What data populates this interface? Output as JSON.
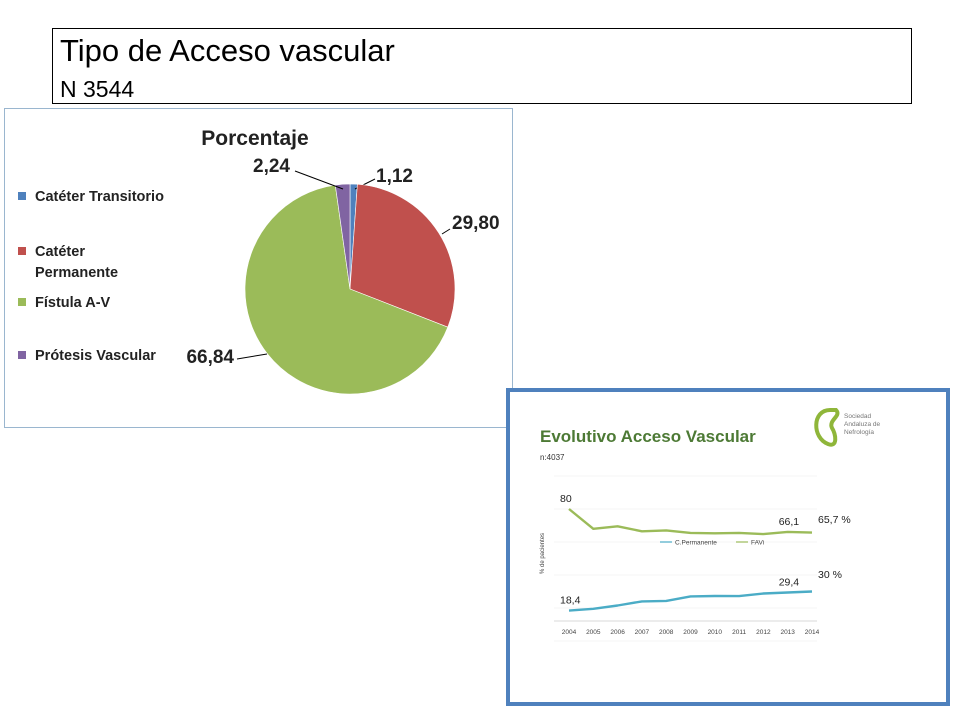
{
  "slide": {
    "title": "Tipo de Acceso vascular",
    "subtitle": "N 3544"
  },
  "pie": {
    "title": "Porcentaje",
    "legend_labels": [
      "Catéter Transitorio",
      "Catéter\nPermanente",
      "Fístula A-V",
      "Prótesis Vascular"
    ]
  },
  "evolution": {
    "title": "Evolutivo Acceso Vascular",
    "n_label": "n:4037",
    "ylabel": "% de pacientes",
    "logo_text": [
      "Sociedad",
      "Andaluza de",
      "Nefrología"
    ],
    "end_labels": [
      "65,7 %",
      "30 %"
    ]
  },
  "chart_data": [
    {
      "type": "pie",
      "title": "Porcentaje",
      "categories": [
        "Catéter Transitorio",
        "Catéter Permanente",
        "Fístula A-V",
        "Prótesis Vascular"
      ],
      "values": [
        1.12,
        29.8,
        66.84,
        2.24
      ],
      "value_labels": [
        "1,12",
        "29,80",
        "66,84",
        "2,24"
      ],
      "colors": [
        "#4f81bd",
        "#c0504d",
        "#9bbb59",
        "#8064a2"
      ],
      "legend_position": "left"
    },
    {
      "type": "line",
      "title": "Evolutivo Acceso Vascular",
      "ylabel": "% de pacientes",
      "x": [
        "2004",
        "2005",
        "2006",
        "2007",
        "2008",
        "2009",
        "2010",
        "2011",
        "2012",
        "2013",
        "2014"
      ],
      "ylim": [
        0,
        100
      ],
      "series": [
        {
          "name": "FAVi",
          "color": "#9bbb59",
          "values": [
            80,
            68,
            69.5,
            66.5,
            67,
            65.5,
            65.3,
            65.5,
            64.8,
            66.1,
            65.7
          ],
          "point_labels": {
            "0": "80",
            "9": "66,1"
          }
        },
        {
          "name": "C.Permanente",
          "color": "#4bacc6",
          "values": [
            18.4,
            19.5,
            21.5,
            24,
            24.3,
            27,
            27.3,
            27.2,
            28.8,
            29.4,
            30
          ],
          "point_labels": {
            "0": "18,4",
            "9": "29,4"
          }
        }
      ],
      "legend_position": "top"
    }
  ]
}
